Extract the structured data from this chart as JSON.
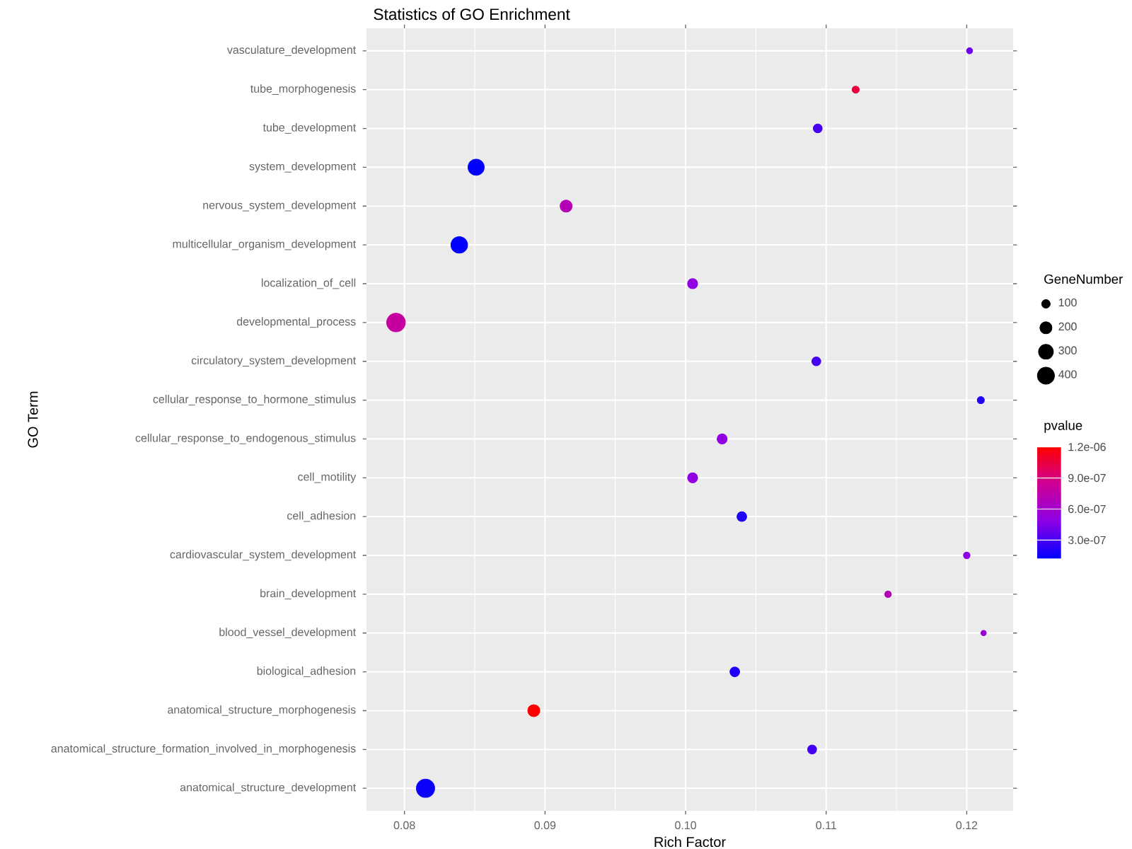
{
  "chart_data": {
    "type": "bubble",
    "title": "Statistics of GO Enrichment",
    "xlabel": "Rich Factor",
    "ylabel": "GO Term",
    "legend_title": "GeneNumber",
    "clabel": "pvalue",
    "orientation": "horizontal",
    "marker": "circle",
    "grid": true,
    "categories": [
      "vasculature_development",
      "tube_morphogenesis",
      "tube_development",
      "system_development",
      "nervous_system_development",
      "multicellular_organism_development",
      "localization_of_cell",
      "developmental_process",
      "circulatory_system_development",
      "cellular_response_to_hormone_stimulus",
      "cellular_response_to_endogenous_stimulus",
      "cell_motility",
      "cell_adhesion",
      "cardiovascular_system_development",
      "brain_development",
      "blood_vessel_development",
      "biological_adhesion",
      "anatomical_structure_morphogenesis",
      "anatomical_structure_formation_involved_in_morphogenesis",
      "anatomical_structure_development"
    ],
    "values": [
      0.1202,
      0.1121,
      0.1094,
      0.0851,
      0.0915,
      0.0839,
      0.1005,
      0.0794,
      0.1093,
      0.121,
      0.1026,
      0.1005,
      0.104,
      0.12,
      0.1144,
      0.1212,
      0.1035,
      0.0892,
      0.109,
      0.0815
    ],
    "sizes": [
      50,
      70,
      110,
      360,
      200,
      380,
      140,
      480,
      110,
      70,
      140,
      140,
      130,
      60,
      60,
      40,
      130,
      200,
      110,
      460
    ],
    "size_legend": [
      100,
      200,
      300,
      400
    ],
    "cvalues": [
      4e-07,
      1.05e-06,
      3e-07,
      1.2e-07,
      7e-07,
      1.2e-07,
      5e-07,
      8e-07,
      3e-07,
      2e-07,
      5e-07,
      5e-07,
      2e-07,
      5e-07,
      7e-07,
      5.5e-07,
      2e-07,
      1.2e-06,
      3e-07,
      1.5e-07
    ],
    "clim": [
      1.2e-07,
      1.2e-06
    ],
    "cticks": [
      {
        "value": 3e-07,
        "label": "3.0e-07"
      },
      {
        "value": 6e-07,
        "label": "6.0e-07"
      },
      {
        "value": 9e-07,
        "label": "9.0e-07"
      },
      {
        "value": 1.2e-06,
        "label": "1.2e-06"
      }
    ],
    "xlim": [
      0.0773,
      0.1233
    ],
    "xticks": [
      {
        "value": 0.08,
        "label": "0.08"
      },
      {
        "value": 0.09,
        "label": "0.09"
      },
      {
        "value": 0.1,
        "label": "0.10"
      },
      {
        "value": 0.11,
        "label": "0.11"
      },
      {
        "value": 0.12,
        "label": "0.12"
      }
    ]
  }
}
